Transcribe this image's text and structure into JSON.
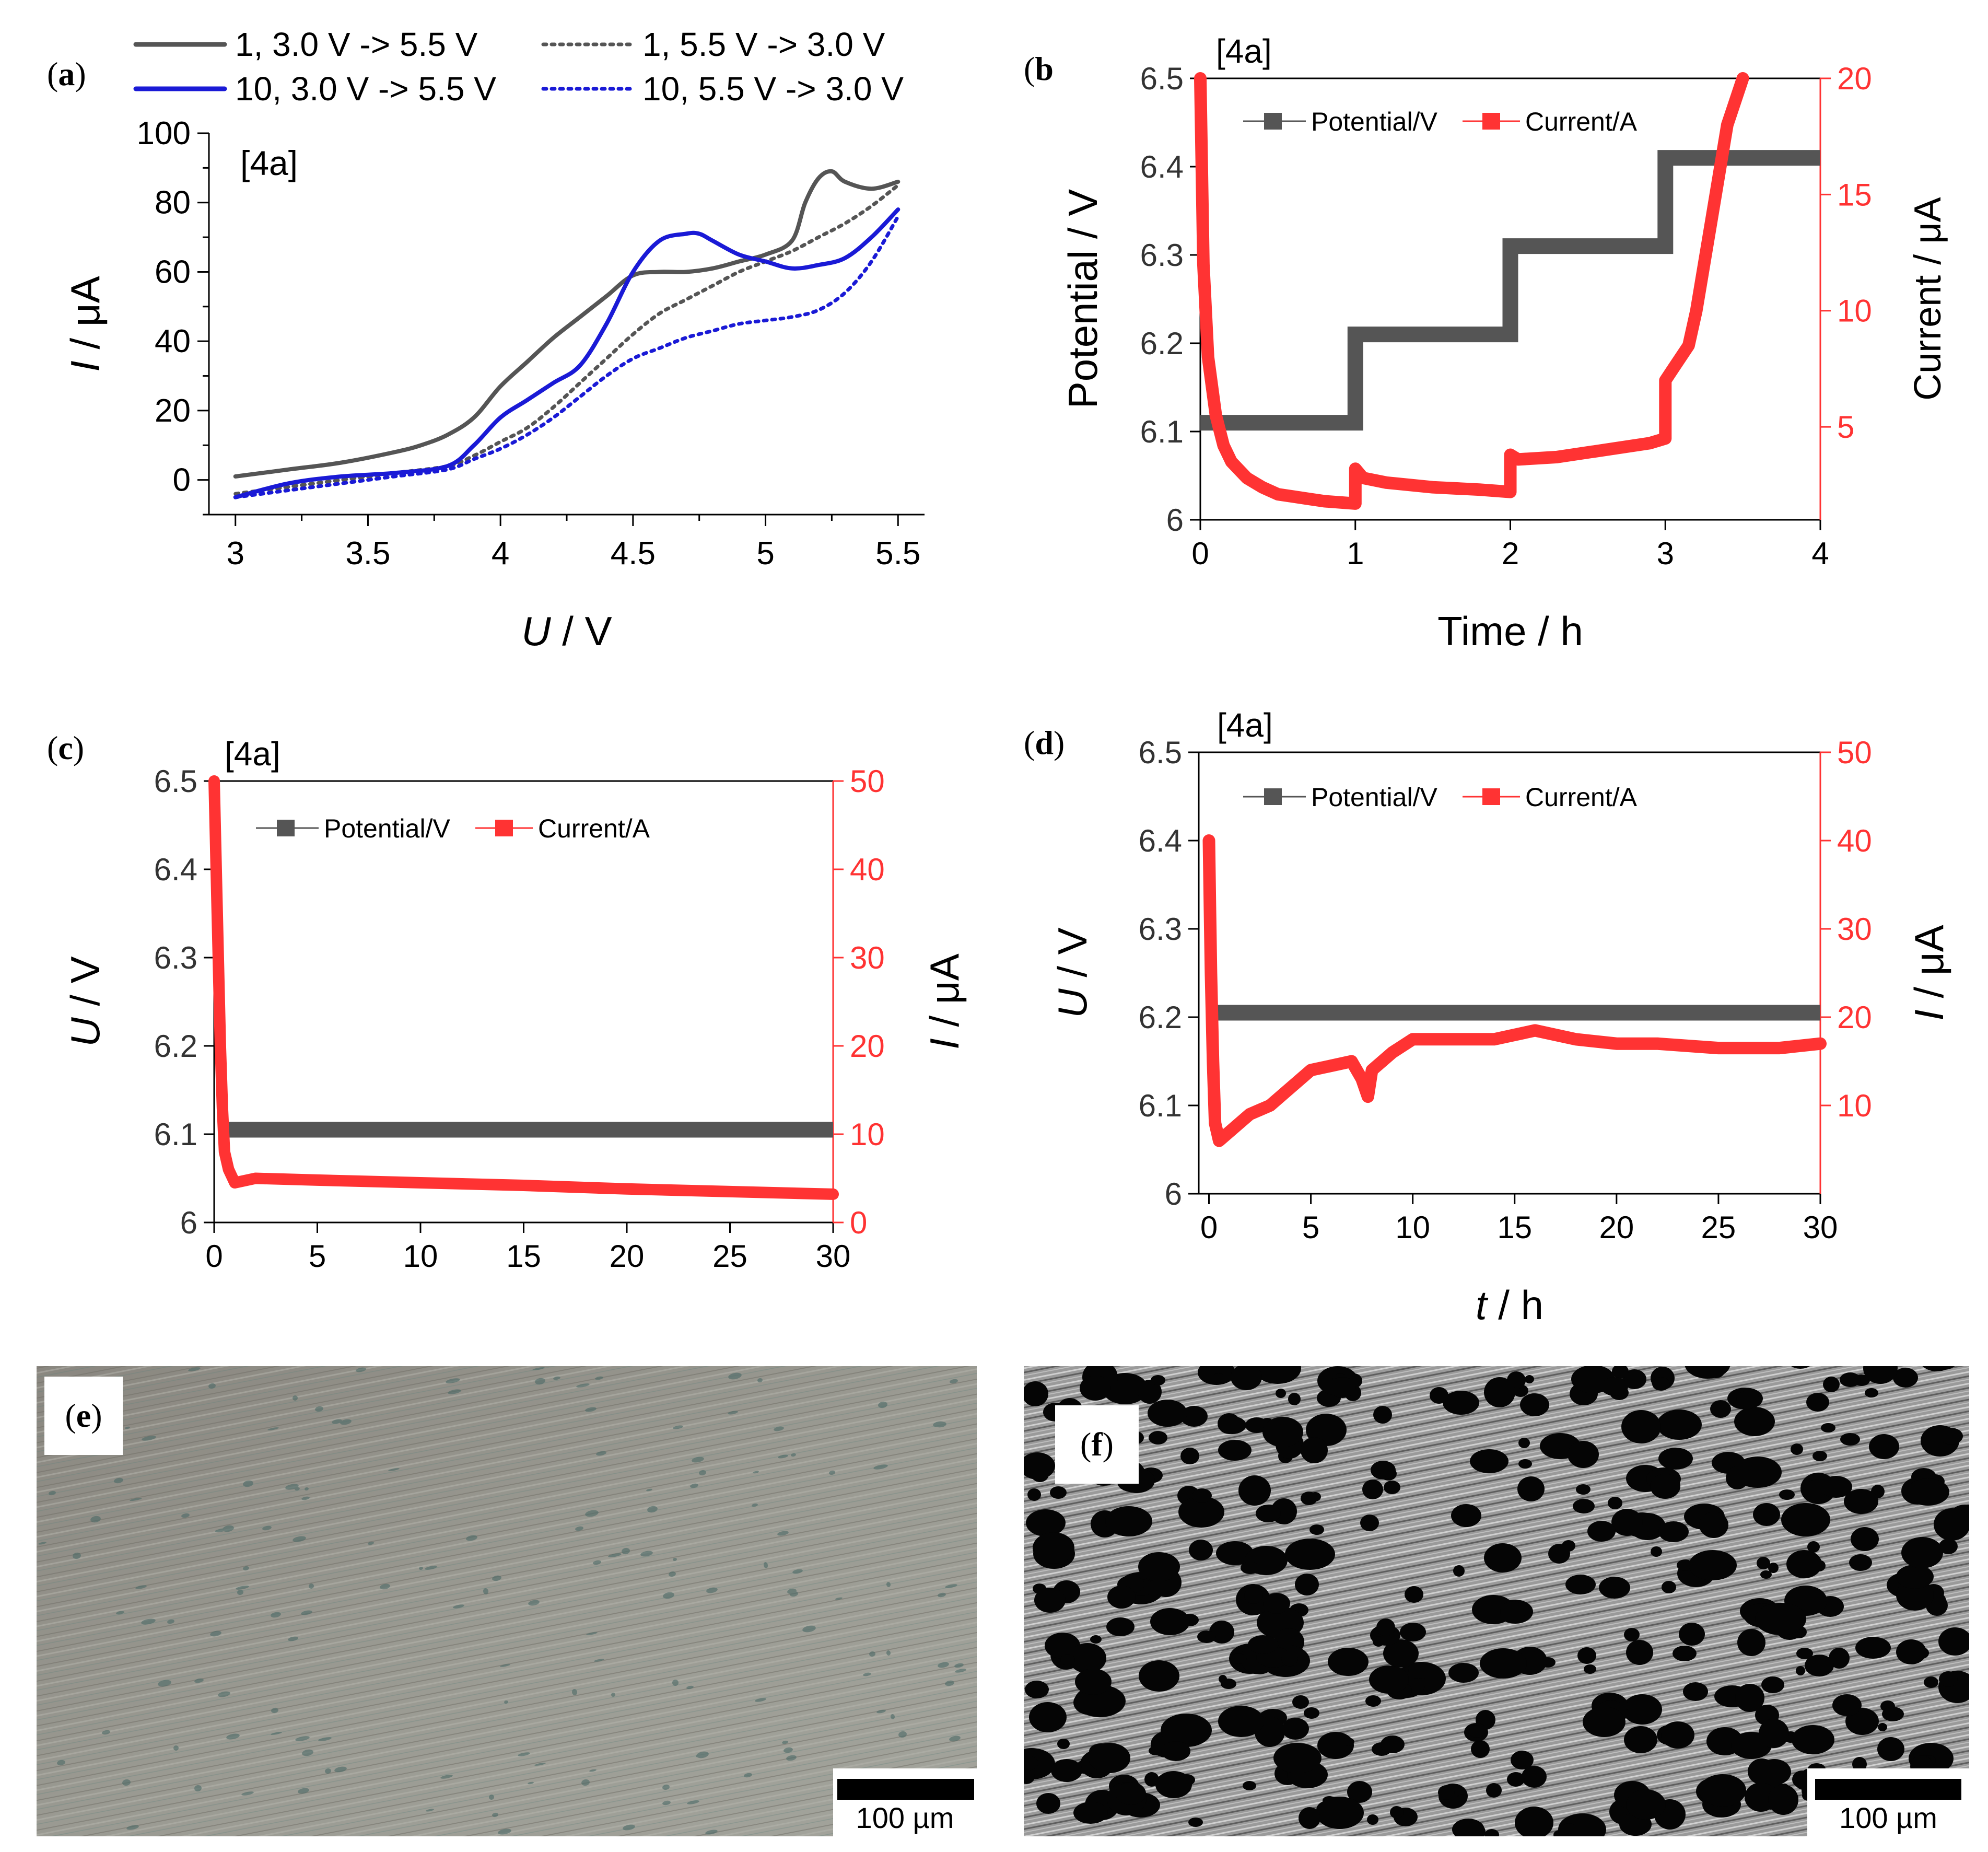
{
  "panel_labels": {
    "a": "a",
    "b": "b",
    "c": "c",
    "d": "d",
    "e": "e",
    "f": "f"
  },
  "colors": {
    "black": "#555555",
    "blue": "#1a1ad6",
    "red": "#ff3333"
  },
  "chart_data": [
    {
      "id": "a",
      "type": "line",
      "tag": "[4a]",
      "xlabel_italic": "U",
      "xlabel_rest": " / V",
      "ylabel_italic": "I",
      "ylabel_rest": " / μA",
      "xlim": [
        2.9,
        5.6
      ],
      "ylim": [
        -10,
        100
      ],
      "xticks": [
        3,
        3.5,
        4,
        4.5,
        5,
        5.5
      ],
      "xtick_labels": [
        "3",
        "3.5",
        "4",
        "4.5",
        "5",
        "5.5"
      ],
      "yticks": [
        0,
        20,
        40,
        60,
        80,
        100
      ],
      "ytick_labels": [
        "0",
        "20",
        "40",
        "60",
        "80",
        "100"
      ],
      "series": [
        {
          "name": "1, 3.0 V -> 5.5 V",
          "color": "#555555",
          "style": "solid",
          "x": [
            3.0,
            3.2,
            3.4,
            3.6,
            3.7,
            3.8,
            3.9,
            4.0,
            4.1,
            4.2,
            4.3,
            4.4,
            4.5,
            4.6,
            4.7,
            4.8,
            4.9,
            5.0,
            5.1,
            5.15,
            5.2,
            5.25,
            5.3,
            5.4,
            5.5
          ],
          "y": [
            1,
            3,
            5,
            8,
            10,
            13,
            18,
            27,
            34,
            41,
            47,
            53,
            59,
            60,
            60,
            61,
            63,
            65,
            69,
            80,
            87,
            89,
            86,
            84,
            86
          ]
        },
        {
          "name": "1, 5.5 V -> 3.0 V",
          "color": "#555555",
          "style": "dotted",
          "x": [
            3.0,
            3.2,
            3.4,
            3.6,
            3.8,
            3.9,
            4.0,
            4.1,
            4.2,
            4.3,
            4.4,
            4.5,
            4.6,
            4.7,
            4.8,
            4.9,
            5.0,
            5.1,
            5.2,
            5.3,
            5.4,
            5.5
          ],
          "y": [
            -4,
            -2,
            0,
            2,
            4,
            7,
            11,
            15,
            21,
            28,
            35,
            42,
            48,
            52,
            56,
            60,
            63,
            66,
            70,
            74,
            79,
            85
          ]
        },
        {
          "name": "10, 3.0 V -> 5.5 V",
          "color": "#1a1ad6",
          "style": "solid",
          "x": [
            3.0,
            3.2,
            3.4,
            3.6,
            3.8,
            3.9,
            4.0,
            4.1,
            4.2,
            4.3,
            4.4,
            4.5,
            4.6,
            4.7,
            4.75,
            4.8,
            4.9,
            5.0,
            5.1,
            5.2,
            5.3,
            5.4,
            5.5
          ],
          "y": [
            -5,
            -1,
            1,
            2,
            4,
            10,
            18,
            23,
            28,
            33,
            45,
            60,
            69,
            71,
            71,
            69,
            65,
            63,
            61,
            62,
            64,
            70,
            78
          ]
        },
        {
          "name": "10, 5.5 V -> 3.0 V",
          "color": "#1a1ad6",
          "style": "dotted",
          "x": [
            3.0,
            3.2,
            3.4,
            3.6,
            3.8,
            3.9,
            4.0,
            4.1,
            4.2,
            4.3,
            4.4,
            4.5,
            4.6,
            4.7,
            4.8,
            4.9,
            5.0,
            5.1,
            5.2,
            5.3,
            5.4,
            5.5
          ],
          "y": [
            -5,
            -3,
            -1,
            1,
            3,
            6,
            9,
            13,
            18,
            24,
            30,
            35,
            38,
            41,
            43,
            45,
            46,
            47,
            49,
            54,
            63,
            76
          ]
        }
      ]
    },
    {
      "id": "b",
      "type": "line",
      "tag": "[4a]",
      "xlabel": "Time / h",
      "ylabel": "Potential / V",
      "y2label": "Current / μA",
      "xlim": [
        0,
        4
      ],
      "ylim": [
        6,
        6.5
      ],
      "y2lim": [
        1,
        20
      ],
      "xticks": [
        0,
        1,
        2,
        3,
        4
      ],
      "xtick_labels": [
        "0",
        "1",
        "2",
        "3",
        "4"
      ],
      "yticks": [
        6,
        6.1,
        6.2,
        6.3,
        6.4,
        6.5
      ],
      "ytick_labels": [
        "6",
        "6.1",
        "6.2",
        "6.3",
        "6.4",
        "6.5"
      ],
      "y2ticks": [
        5,
        10,
        15,
        20
      ],
      "y2tick_labels": [
        "5",
        "10",
        "15",
        "20"
      ],
      "legend": [
        "Potential/V",
        "Current/A"
      ],
      "potential": {
        "x": [
          0,
          1,
          1,
          2,
          2,
          3,
          3,
          4
        ],
        "y": [
          6.11,
          6.11,
          6.21,
          6.21,
          6.31,
          6.31,
          6.41,
          6.41
        ]
      },
      "current": {
        "x": [
          0,
          0.02,
          0.05,
          0.1,
          0.15,
          0.2,
          0.3,
          0.4,
          0.5,
          0.6,
          0.7,
          0.8,
          1.0,
          1.0,
          1.05,
          1.2,
          1.5,
          1.8,
          2.0,
          2.0,
          2.05,
          2.3,
          2.6,
          2.9,
          3.0,
          3.0,
          3.05,
          3.15,
          3.2,
          3.3,
          3.4,
          3.5
        ],
        "y": [
          20,
          12,
          8,
          5.5,
          4.2,
          3.5,
          2.8,
          2.4,
          2.1,
          2.0,
          1.9,
          1.8,
          1.7,
          3.2,
          2.8,
          2.6,
          2.4,
          2.3,
          2.2,
          3.8,
          3.6,
          3.7,
          4.0,
          4.3,
          4.5,
          7.0,
          7.5,
          8.5,
          10.0,
          14.0,
          18.0,
          20.0
        ]
      }
    },
    {
      "id": "c",
      "type": "line",
      "tag": "[4a]",
      "xlabel_italic": "",
      "xlabel_rest": "",
      "ylabel_italic": "U",
      "ylabel_rest": " / V",
      "y2label_italic": "I",
      "y2label_rest": " / μA",
      "xlim": [
        0,
        30
      ],
      "ylim": [
        6,
        6.5
      ],
      "y2lim": [
        0,
        50
      ],
      "xticks": [
        0,
        5,
        10,
        15,
        20,
        25,
        30
      ],
      "xtick_labels": [
        "0",
        "5",
        "10",
        "15",
        "20",
        "25",
        "30"
      ],
      "yticks": [
        6,
        6.1,
        6.2,
        6.3,
        6.4,
        6.5
      ],
      "ytick_labels": [
        "6",
        "6.1",
        "6.2",
        "6.3",
        "6.4",
        "6.5"
      ],
      "y2ticks": [
        0,
        10,
        20,
        30,
        40,
        50
      ],
      "y2tick_labels": [
        "0",
        "10",
        "20",
        "30",
        "40",
        "50"
      ],
      "legend": [
        "Potential/V",
        "Current/A"
      ],
      "potential": {
        "x": [
          0.6,
          30
        ],
        "y": [
          6.105,
          6.105
        ]
      },
      "current": {
        "x": [
          0,
          0.1,
          0.2,
          0.3,
          0.4,
          0.5,
          0.7,
          1.0,
          2,
          5,
          10,
          15,
          20,
          25,
          30
        ],
        "y": [
          50,
          40,
          30,
          20,
          13,
          8,
          6,
          4.5,
          5,
          4.8,
          4.5,
          4.2,
          3.8,
          3.5,
          3.2
        ]
      }
    },
    {
      "id": "d",
      "type": "line",
      "tag": "[4a]",
      "xlabel_italic": "t",
      "xlabel_rest": " / h",
      "ylabel_italic": "U",
      "ylabel_rest": " / V",
      "y2label_italic": "I",
      "y2label_rest": " / μA",
      "xlim": [
        -0.5,
        30
      ],
      "ylim": [
        6,
        6.5
      ],
      "y2lim": [
        0,
        50
      ],
      "xticks": [
        0,
        5,
        10,
        15,
        20,
        25,
        30
      ],
      "xtick_labels": [
        "0",
        "5",
        "10",
        "15",
        "20",
        "25",
        "30"
      ],
      "yticks": [
        6,
        6.1,
        6.2,
        6.3,
        6.4,
        6.5
      ],
      "ytick_labels": [
        "6",
        "6.1",
        "6.2",
        "6.3",
        "6.4",
        "6.5"
      ],
      "y2ticks": [
        10,
        20,
        30,
        40,
        50
      ],
      "y2tick_labels": [
        "10",
        "20",
        "30",
        "40",
        "50"
      ],
      "legend": [
        "Potential/V",
        "Current/A"
      ],
      "potential": {
        "x": [
          0.1,
          30
        ],
        "y": [
          6.205,
          6.205
        ]
      },
      "current": {
        "x": [
          0,
          0.05,
          0.1,
          0.2,
          0.3,
          0.5,
          1,
          2,
          3,
          4,
          5,
          6,
          7,
          7.5,
          7.8,
          8,
          9,
          10,
          12,
          14,
          16,
          18,
          20,
          22,
          25,
          28,
          30
        ],
        "y": [
          40,
          32,
          25,
          15,
          8,
          6,
          7,
          9,
          10,
          12,
          14,
          14.5,
          15,
          13,
          11,
          14,
          16,
          17.5,
          17.5,
          17.5,
          18.5,
          17.5,
          17,
          17,
          16.5,
          16.5,
          17
        ]
      }
    }
  ],
  "micrographs": {
    "e": {
      "scale_label": "100 µm"
    },
    "f": {
      "scale_label": "100 µm"
    }
  }
}
